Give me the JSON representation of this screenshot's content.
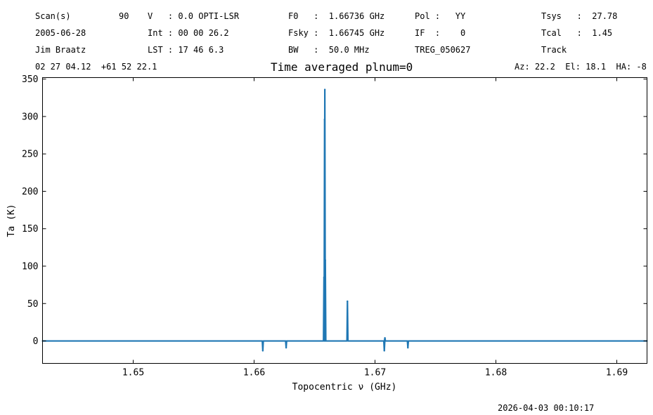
{
  "header": {
    "rows": [
      [
        "Scan(s)",
        "90",
        "V   : 0.0 OPTI-LSR",
        "F0   :  1.66736 GHz",
        "Pol :   YY",
        "Tsys   :  27.78"
      ],
      [
        "2005-06-28",
        "",
        "Int : 00 00 26.2",
        "Fsky :  1.66745 GHz",
        "IF  :    0",
        "Tcal   :  1.45"
      ],
      [
        "Jim Braatz",
        "",
        "LST : 17 46 6.3",
        "BW   :  50.0 MHz",
        "TREG_050627",
        "Track"
      ]
    ],
    "coords": "02 27 04.12  +61 52 22.1",
    "azel": "Az: 22.2  El: 18.1  HA: -8"
  },
  "title": "Time averaged plnum=0",
  "footer": {
    "timestamp": "2026-04-03 00:10:17"
  },
  "chart_data": {
    "type": "line",
    "title": "Time averaged plnum=0",
    "xlabel": "Topocentric ν (GHz)",
    "ylabel": "Ta (K)",
    "xlim": [
      1.6425,
      1.6925
    ],
    "ylim": [
      -30,
      352
    ],
    "xticks": [
      1.65,
      1.66,
      1.67,
      1.68,
      1.69
    ],
    "xtick_labels": [
      "1.65",
      "1.66",
      "1.67",
      "1.68",
      "1.69"
    ],
    "yticks": [
      0,
      50,
      100,
      150,
      200,
      250,
      300,
      350
    ],
    "ytick_labels": [
      "0",
      "50",
      "100",
      "150",
      "200",
      "250",
      "300",
      "350"
    ],
    "grid": false,
    "color": "#1f77b4",
    "baseline": 0,
    "features": [
      {
        "x": 1.66072,
        "y": -13
      },
      {
        "x": 1.66265,
        "y": -9
      },
      {
        "x": 1.66578,
        "y": 85
      },
      {
        "x": 1.66583,
        "y": 296
      },
      {
        "x": 1.66585,
        "y": 336
      },
      {
        "x": 1.66589,
        "y": 108
      },
      {
        "x": 1.66772,
        "y": 53
      },
      {
        "x": 1.67077,
        "y": -13
      },
      {
        "x": 1.67082,
        "y": 4
      },
      {
        "x": 1.67272,
        "y": -9
      }
    ]
  }
}
